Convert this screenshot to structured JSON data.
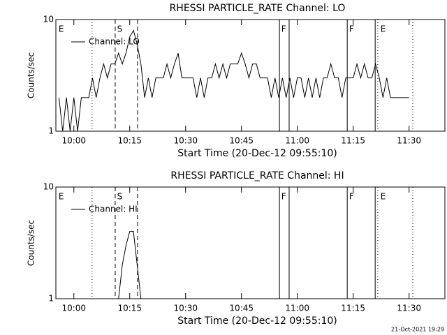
{
  "chart_data": [
    {
      "type": "line",
      "title": "RHESSI PARTICLE_RATE Channel: LO",
      "x_label": "Start Time (20-Dec-12 09:55:10)",
      "y_label": "Counts/sec",
      "log_y": true,
      "legend": "upper left",
      "xlim": [
        595.17,
        699.62
      ],
      "ylim": [
        1,
        10
      ],
      "xticks": [
        {
          "value": 600,
          "label": "10:00"
        },
        {
          "value": 615,
          "label": "10:15"
        },
        {
          "value": 630,
          "label": "10:30"
        },
        {
          "value": 645,
          "label": "10:45"
        },
        {
          "value": 660,
          "label": "11:00"
        },
        {
          "value": 675,
          "label": "11:15"
        },
        {
          "value": 690,
          "label": "11:30"
        }
      ],
      "yticks": [
        1,
        10
      ],
      "vlines": [
        {
          "x": 604.9,
          "style": "dotted"
        },
        {
          "x": 611.1,
          "style": "dashed"
        },
        {
          "x": 617.1,
          "style": "dashed"
        },
        {
          "x": 655.2,
          "style": "solid"
        },
        {
          "x": 657.8,
          "style": "solid"
        },
        {
          "x": 673.4,
          "style": "solid"
        },
        {
          "x": 680.9,
          "style": "solid"
        },
        {
          "x": 681.6,
          "style": "dotted"
        },
        {
          "x": 691.0,
          "style": "dotted"
        }
      ],
      "annotations": [
        {
          "text": "E",
          "x": 595.9
        },
        {
          "text": "S",
          "x": 611.6
        },
        {
          "text": "F",
          "x": 655.7
        },
        {
          "text": "F",
          "x": 673.9
        },
        {
          "text": "E",
          "x": 682.3
        }
      ],
      "x": [
        596,
        597,
        598,
        599,
        600,
        601,
        602,
        603,
        604,
        605,
        606,
        607,
        608,
        609,
        610,
        611,
        612,
        613,
        614,
        615,
        616,
        617,
        618,
        619,
        620,
        621,
        622,
        623,
        624,
        625,
        626,
        627,
        628,
        629,
        630,
        631,
        632,
        633,
        634,
        635,
        636,
        637,
        638,
        639,
        640,
        641,
        642,
        643,
        644,
        645,
        646,
        647,
        648,
        649,
        650,
        651,
        652,
        653,
        654,
        655,
        656,
        657,
        658,
        659,
        660,
        661,
        662,
        663,
        664,
        665,
        666,
        667,
        668,
        669,
        670,
        671,
        672,
        673,
        674,
        675,
        676,
        677,
        678,
        679,
        680,
        681,
        682,
        683,
        684,
        685,
        686,
        687,
        688,
        689,
        690
      ],
      "series": [
        {
          "name": "Channel: LO",
          "color": "#000000",
          "values": [
            2,
            1,
            2,
            1,
            2,
            1,
            2,
            2,
            2,
            3,
            2,
            3,
            4,
            3,
            4,
            4,
            5,
            4,
            5,
            7,
            8,
            6,
            4,
            2,
            3,
            2,
            3,
            3,
            3,
            4,
            3,
            4,
            5,
            3,
            3,
            3,
            3,
            2,
            3,
            2,
            3,
            3,
            4,
            3,
            4,
            3,
            4,
            4,
            4,
            5,
            4,
            3,
            4,
            4,
            3,
            3,
            3,
            2,
            3,
            2,
            3,
            2,
            3,
            2,
            3,
            3,
            2,
            3,
            2,
            3,
            2,
            3,
            3,
            4,
            3,
            3,
            2,
            3,
            3,
            3,
            4,
            3,
            4,
            3,
            3,
            4,
            3,
            2,
            3,
            2,
            2,
            2,
            2,
            2,
            2
          ]
        }
      ]
    },
    {
      "type": "line",
      "title": "RHESSI PARTICLE_RATE Channel: HI",
      "x_label": "Start Time (20-Dec-12 09:55:10)",
      "y_label": "Counts/sec",
      "log_y": true,
      "legend": "upper left",
      "xlim": [
        595.17,
        699.62
      ],
      "ylim": [
        1,
        10
      ],
      "xticks": [
        {
          "value": 600,
          "label": "10:00"
        },
        {
          "value": 615,
          "label": "10:15"
        },
        {
          "value": 630,
          "label": "10:30"
        },
        {
          "value": 645,
          "label": "10:45"
        },
        {
          "value": 660,
          "label": "11:00"
        },
        {
          "value": 675,
          "label": "11:15"
        },
        {
          "value": 690,
          "label": "11:30"
        }
      ],
      "yticks": [
        1,
        10
      ],
      "vlines": [
        {
          "x": 604.9,
          "style": "dotted"
        },
        {
          "x": 611.1,
          "style": "dashed"
        },
        {
          "x": 617.1,
          "style": "dashed"
        },
        {
          "x": 655.2,
          "style": "solid"
        },
        {
          "x": 657.8,
          "style": "solid"
        },
        {
          "x": 673.4,
          "style": "solid"
        },
        {
          "x": 680.9,
          "style": "solid"
        },
        {
          "x": 681.6,
          "style": "dotted"
        },
        {
          "x": 691.0,
          "style": "dotted"
        }
      ],
      "annotations": [
        {
          "text": "E",
          "x": 595.9
        },
        {
          "text": "S",
          "x": 611.6
        },
        {
          "text": "F",
          "x": 655.7
        },
        {
          "text": "F",
          "x": 673.9
        },
        {
          "text": "E",
          "x": 682.3
        }
      ],
      "x": [
        596,
        597,
        598,
        599,
        600,
        601,
        602,
        603,
        604,
        605,
        606,
        607,
        608,
        609,
        610,
        611,
        612,
        613,
        614,
        615,
        616,
        617,
        618,
        619,
        620,
        621,
        622,
        623,
        624,
        625,
        626,
        627,
        628,
        629,
        630,
        631,
        632,
        633,
        634,
        635,
        636,
        637,
        638,
        639,
        640,
        641,
        642,
        643,
        644,
        645,
        646,
        647,
        648,
        649,
        650,
        651,
        652,
        653,
        654,
        655,
        656,
        657,
        658,
        659,
        660,
        661,
        662,
        663,
        664,
        665,
        666,
        667,
        668,
        669,
        670,
        671,
        672,
        673,
        674,
        675,
        676,
        677,
        678,
        679,
        680,
        681,
        682,
        683,
        684,
        685,
        686,
        687,
        688,
        689,
        690
      ],
      "series": [
        {
          "name": "Channel: HI",
          "color": "#000000",
          "values": [
            1,
            1,
            1,
            1,
            1,
            1,
            1,
            1,
            1,
            1,
            1,
            1,
            1,
            1,
            1,
            1,
            1,
            2,
            3,
            4,
            4,
            2,
            1,
            1,
            1,
            1,
            1,
            1,
            1,
            1,
            1,
            1,
            1,
            1,
            1,
            1,
            1,
            1,
            1,
            1,
            1,
            1,
            1,
            1,
            1,
            1,
            1,
            1,
            1,
            1,
            1,
            1,
            1,
            1,
            1,
            1,
            1,
            1,
            1,
            1,
            1,
            1,
            1,
            1,
            1,
            1,
            1,
            1,
            1,
            1,
            1,
            1,
            1,
            1,
            1,
            1,
            1,
            1,
            1,
            1,
            1,
            1,
            1,
            1,
            1,
            1,
            1,
            1,
            1,
            1,
            1,
            1,
            1,
            1,
            1
          ]
        }
      ]
    }
  ],
  "timestamp": "21-Oct-2021 19:29"
}
